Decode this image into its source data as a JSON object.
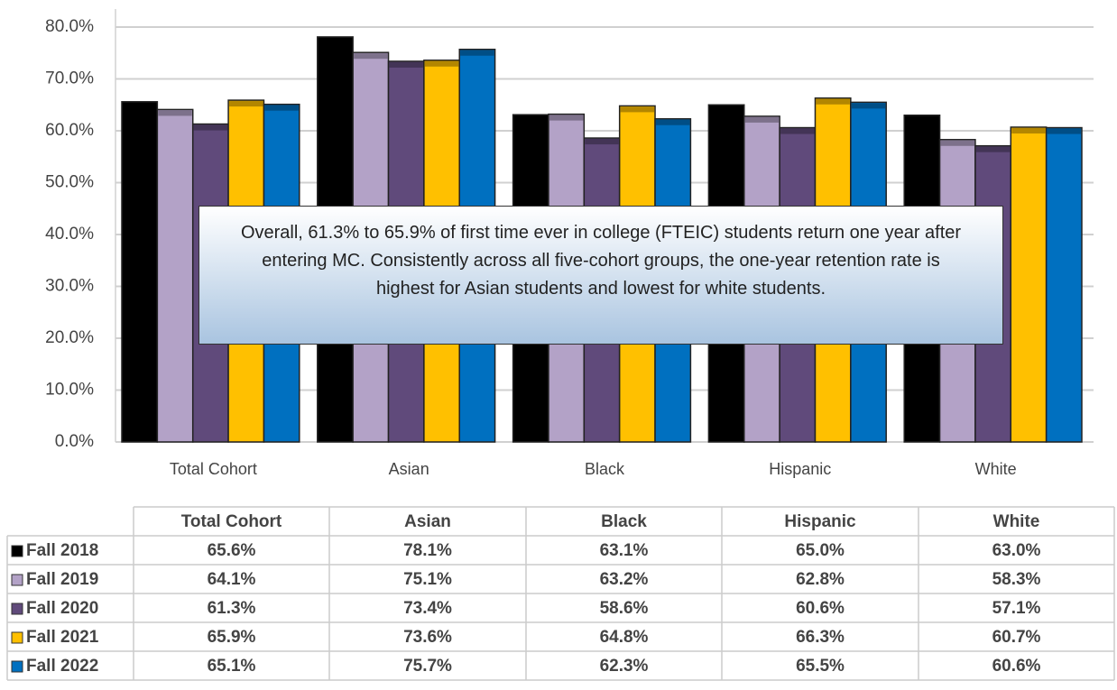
{
  "chart_data": {
    "type": "bar",
    "categories": [
      "Total Cohort",
      "Asian",
      "Black",
      "Hispanic",
      "White"
    ],
    "series": [
      {
        "name": "Fall 2018",
        "color": "#000000",
        "values": [
          65.6,
          78.1,
          63.1,
          65.0,
          63.0
        ],
        "value_labels": [
          "65.6%",
          "78.1%",
          "63.1%",
          "65.0%",
          "63.0%"
        ]
      },
      {
        "name": "Fall 2019",
        "color": "#b3a2c7",
        "values": [
          64.1,
          75.1,
          63.2,
          62.8,
          58.3
        ],
        "value_labels": [
          "64.1%",
          "75.1%",
          "63.2%",
          "62.8%",
          "58.3%"
        ]
      },
      {
        "name": "Fall 2020",
        "color": "#604a7b",
        "values": [
          61.3,
          73.4,
          58.6,
          60.6,
          57.1
        ],
        "value_labels": [
          "61.3%",
          "73.4%",
          "58.6%",
          "60.6%",
          "57.1%"
        ]
      },
      {
        "name": "Fall 2021",
        "color": "#ffc000",
        "values": [
          65.9,
          73.6,
          64.8,
          66.3,
          60.7
        ],
        "value_labels": [
          "65.9%",
          "73.6%",
          "64.8%",
          "66.3%",
          "60.7%"
        ]
      },
      {
        "name": "Fall 2022",
        "color": "#0070c0",
        "values": [
          65.1,
          75.7,
          62.3,
          65.5,
          60.6
        ],
        "value_labels": [
          "65.1%",
          "75.7%",
          "62.3%",
          "65.5%",
          "60.6%"
        ]
      }
    ],
    "ylim": [
      0,
      80
    ],
    "yticks": [
      {
        "value": 0,
        "label": "0.0%"
      },
      {
        "value": 10,
        "label": "10.0%"
      },
      {
        "value": 20,
        "label": "20.0%"
      },
      {
        "value": 30,
        "label": "30.0%"
      },
      {
        "value": 40,
        "label": "40.0%"
      },
      {
        "value": 50,
        "label": "50.0%"
      },
      {
        "value": 60,
        "label": "60.0%"
      },
      {
        "value": 70,
        "label": "70.0%"
      },
      {
        "value": 80,
        "label": "80.0%"
      }
    ],
    "grid": true,
    "annotation": "Overall, 61.3% to 65.9% of first time ever in college (FTEIC) students return one year after entering MC. Consistently across all five-cohort groups, the one-year retention rate is highest for Asian students and lowest for white students."
  }
}
